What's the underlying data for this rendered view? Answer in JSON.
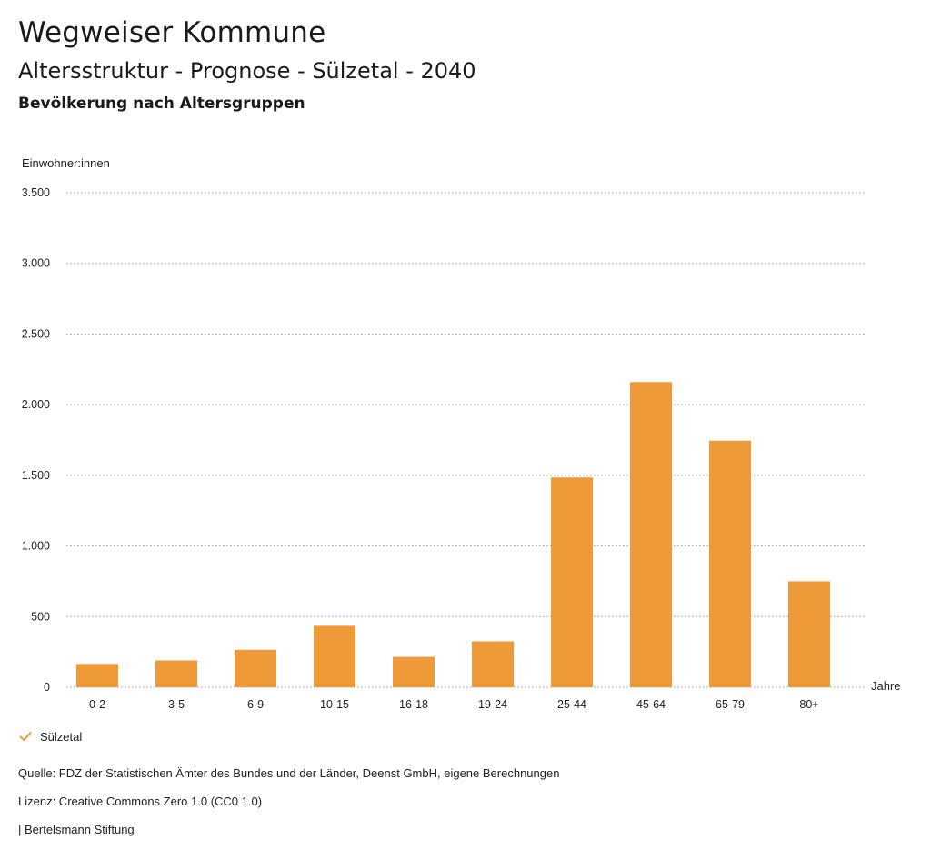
{
  "header": {
    "title": "Wegweiser Kommune",
    "subtitle": "Altersstruktur - Prognose - Sülzetal - 2040",
    "subheading": "Bevölkerung nach Altersgruppen"
  },
  "chart_data": {
    "type": "bar",
    "categories": [
      "0-2",
      "3-5",
      "6-9",
      "10-15",
      "16-18",
      "19-24",
      "25-44",
      "45-64",
      "65-79",
      "80+"
    ],
    "series": [
      {
        "name": "Sülzetal",
        "values": [
          165,
          190,
          265,
          435,
          215,
          325,
          1485,
          2160,
          1745,
          750
        ],
        "color": "#ee9a38"
      }
    ],
    "ylabel": "Einwohner:innen",
    "xlabel": "Jahre",
    "ylim": [
      0,
      3500
    ],
    "yticks": [
      0,
      500,
      1000,
      1500,
      2000,
      2500,
      3000,
      3500
    ],
    "ytick_labels": [
      "0",
      "500",
      "1.000",
      "1.500",
      "2.000",
      "2.500",
      "3.000",
      "3.500"
    ],
    "grid": true,
    "legend_position": "bottom-left"
  },
  "legend": {
    "label": "Sülzetal",
    "icon": "check-icon",
    "color": "#ee9a38"
  },
  "footer": {
    "source": "Quelle: FDZ der Statistischen Ämter des Bundes und der Länder, Deenst GmbH, eigene Berechnungen",
    "license": "Lizenz: Creative Commons Zero 1.0 (CC0 1.0)",
    "publisher": "| Bertelsmann Stiftung"
  }
}
